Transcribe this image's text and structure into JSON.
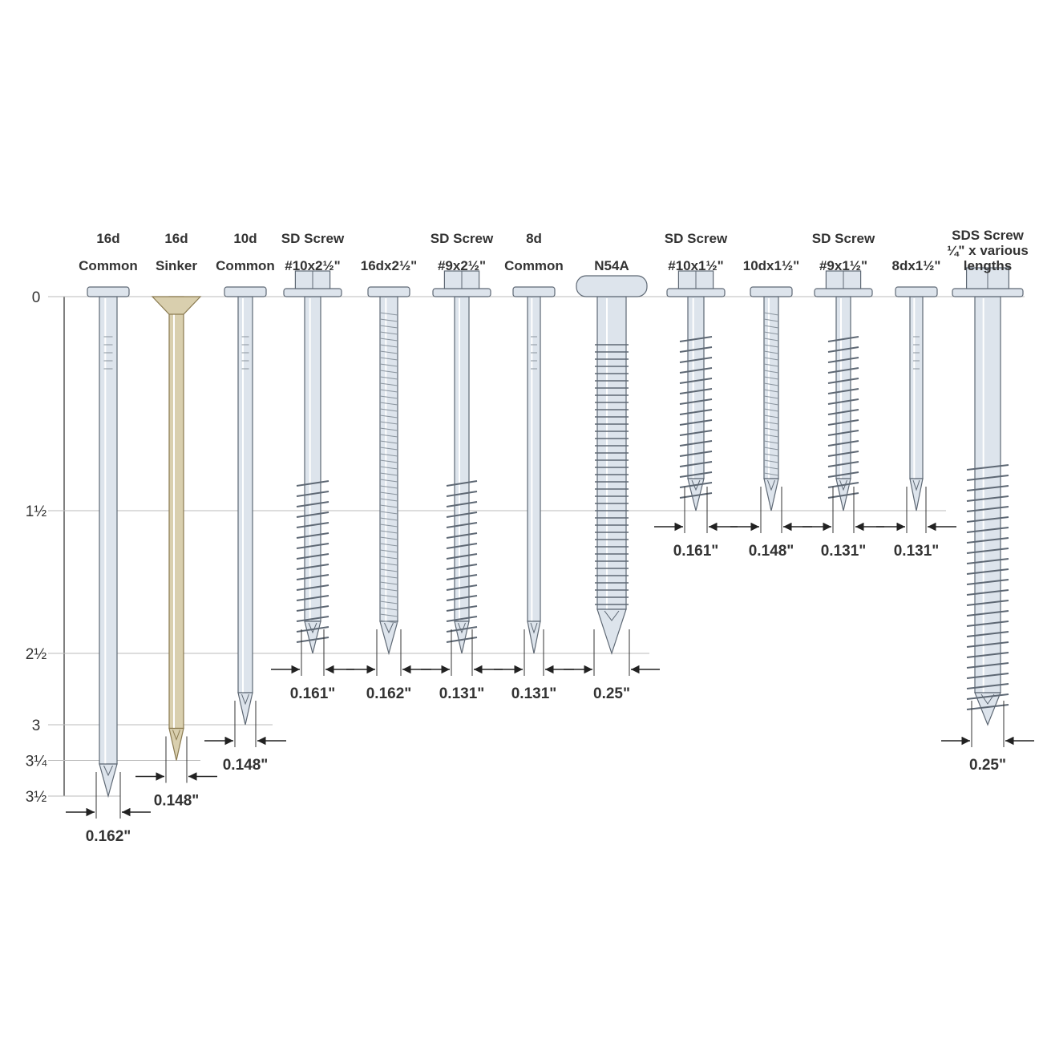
{
  "scale": [
    0,
    {
      "value": 1.5,
      "label": "1½"
    },
    {
      "value": 2.5,
      "label": "2½"
    },
    {
      "value": 3,
      "label": "3"
    },
    {
      "value": 3.25,
      "label": "3¼"
    },
    {
      "value": 3.5,
      "label": "3½"
    }
  ],
  "fasteners": [
    {
      "label": [
        "16d",
        "Common"
      ],
      "diameter": "0.162\""
    },
    {
      "label": [
        "16d",
        "Sinker"
      ],
      "diameter": "0.148\""
    },
    {
      "label": [
        "10d",
        "Common"
      ],
      "diameter": "0.148\""
    },
    {
      "label": [
        "SD Screw",
        "#10x2½\""
      ],
      "diameter": "0.161\""
    },
    {
      "label": [
        "16dx2½\""
      ],
      "diameter": "0.162\""
    },
    {
      "label": [
        "SD Screw",
        "#9x2½\""
      ],
      "diameter": "0.131\""
    },
    {
      "label": [
        "8d",
        "Common"
      ],
      "diameter": "0.131\""
    },
    {
      "label": [
        "N54A"
      ],
      "diameter": "0.25\""
    },
    {
      "label": [
        "SD Screw",
        "#10x1½\""
      ],
      "diameter": "0.161\""
    },
    {
      "label": [
        "10dx1½\""
      ],
      "diameter": "0.148\""
    },
    {
      "label": [
        "SD Screw",
        "#9x1½\""
      ],
      "diameter": "0.131\""
    },
    {
      "label": [
        "8dx1½\""
      ],
      "diameter": "0.131\""
    },
    {
      "label": [
        "SDS Screw",
        "¼\" x various",
        "lengths"
      ],
      "diameter": "0.25\""
    }
  ]
}
